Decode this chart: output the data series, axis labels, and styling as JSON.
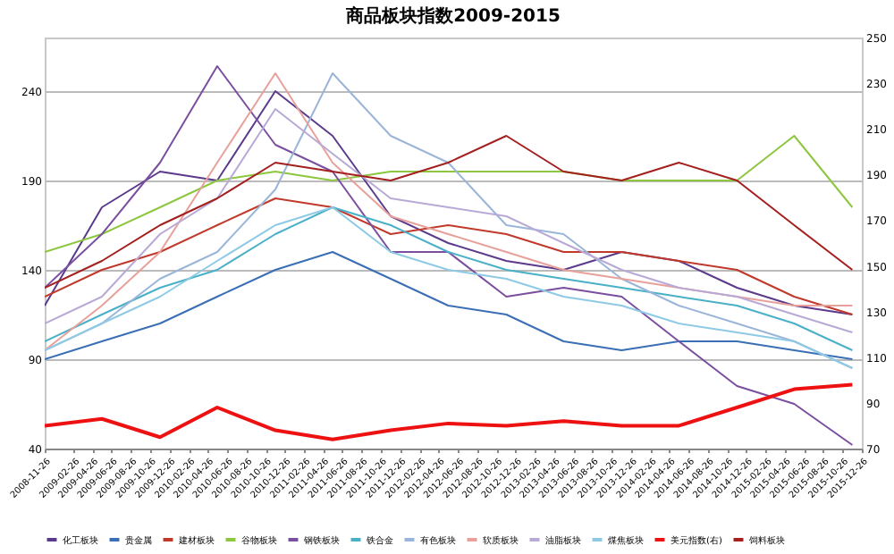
{
  "chart_data": {
    "type": "line",
    "title": "商品板块指数2009-2015",
    "x": [
      "2008-11-26",
      "2009-05-26",
      "2009-11-26",
      "2010-05-26",
      "2010-11-26",
      "2011-05-26",
      "2011-11-26",
      "2012-05-26",
      "2012-11-26",
      "2013-05-26",
      "2013-11-26",
      "2014-05-26",
      "2014-11-26",
      "2015-05-26",
      "2015-11-26"
    ],
    "xlim": [
      "2008-11-26",
      "2015-12-26"
    ],
    "xticks": [
      "2008-11-26",
      "2009-02-26",
      "2009-04-26",
      "2009-06-26",
      "2009-08-26",
      "2009-10-26",
      "2009-12-26",
      "2010-02-26",
      "2010-04-26",
      "2010-06-26",
      "2010-08-26",
      "2010-10-26",
      "2010-12-26",
      "2011-02-26",
      "2011-04-26",
      "2011-06-26",
      "2011-08-26",
      "2011-10-26",
      "2011-12-26",
      "2012-02-26",
      "2012-04-26",
      "2012-06-26",
      "2012-08-26",
      "2012-10-26",
      "2012-12-26",
      "2013-02-26",
      "2013-04-26",
      "2013-06-26",
      "2013-08-26",
      "2013-10-26",
      "2013-12-26",
      "2014-02-26",
      "2014-04-26",
      "2014-06-26",
      "2014-08-26",
      "2014-10-26",
      "2014-12-26",
      "2015-02-26",
      "2015-04-26",
      "2015-06-26",
      "2015-08-26",
      "2015-10-26",
      "2015-12-26"
    ],
    "ylim": [
      40,
      270
    ],
    "yticks": [
      40,
      90,
      140,
      190,
      240
    ],
    "y2lim": [
      70,
      250
    ],
    "y2ticks": [
      70,
      90,
      110,
      130,
      150,
      170,
      190,
      210,
      230,
      250
    ],
    "grid": "y",
    "legend": "bottom",
    "marker": "none",
    "series": [
      {
        "name": "化工板块",
        "color": "#5b3a8c",
        "values": [
          120,
          175,
          195,
          190,
          240,
          215,
          170,
          155,
          145,
          140,
          150,
          145,
          130,
          120,
          115
        ]
      },
      {
        "name": "贵金属",
        "color": "#3a6fb5",
        "values": [
          90,
          100,
          110,
          125,
          140,
          150,
          135,
          120,
          115,
          100,
          95,
          100,
          100,
          95,
          90
        ]
      },
      {
        "name": "建材板块",
        "color": "#c0392b",
        "values": [
          125,
          140,
          150,
          165,
          180,
          175,
          160,
          165,
          160,
          150,
          150,
          145,
          140,
          125,
          115
        ]
      },
      {
        "name": "谷物板块",
        "color": "#8dc63f",
        "values": [
          150,
          160,
          175,
          190,
          195,
          190,
          195,
          195,
          195,
          195,
          190,
          190,
          190,
          215,
          175
        ]
      },
      {
        "name": "钢铁板块",
        "color": "#7b4fa0",
        "values": [
          130,
          160,
          200,
          254,
          210,
          195,
          150,
          150,
          125,
          130,
          125,
          100,
          75,
          65,
          42
        ]
      },
      {
        "name": "铁合金",
        "color": "#4ab0c8",
        "values": [
          100,
          115,
          130,
          140,
          160,
          175,
          165,
          150,
          140,
          135,
          130,
          125,
          120,
          110,
          95
        ]
      },
      {
        "name": "有色板块",
        "color": "#9bb5d8",
        "values": [
          95,
          110,
          135,
          150,
          185,
          250,
          215,
          200,
          165,
          160,
          135,
          120,
          110,
          100,
          85
        ]
      },
      {
        "name": "软质板块",
        "color": "#e8a09a",
        "values": [
          95,
          120,
          150,
          200,
          250,
          200,
          170,
          160,
          150,
          140,
          135,
          130,
          125,
          120,
          120
        ]
      },
      {
        "name": "油脂板块",
        "color": "#b8a9d6",
        "values": [
          110,
          125,
          160,
          180,
          230,
          205,
          180,
          175,
          170,
          155,
          140,
          130,
          125,
          115,
          105
        ]
      },
      {
        "name": "煤焦板块",
        "color": "#8ecae6",
        "values": [
          95,
          110,
          125,
          145,
          165,
          175,
          150,
          140,
          135,
          125,
          120,
          110,
          105,
          100,
          85
        ]
      },
      {
        "name": "美元指数(右)",
        "color": "#ee1111",
        "axis": "y2",
        "values": [
          80,
          83,
          75,
          88,
          78,
          74,
          78,
          81,
          80,
          82,
          80,
          80,
          88,
          96,
          98
        ]
      },
      {
        "name": "饲料板块",
        "color": "#a3201f",
        "values": [
          130,
          145,
          165,
          180,
          200,
          195,
          190,
          200,
          215,
          195,
          190,
          200,
          190,
          165,
          140
        ]
      }
    ]
  }
}
